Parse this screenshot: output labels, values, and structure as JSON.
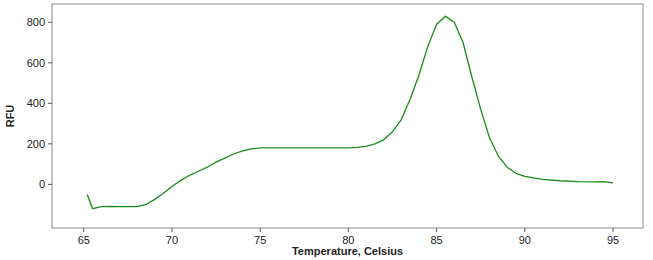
{
  "chart_data": {
    "type": "line",
    "x_label": "Temperature, Celsius",
    "y_label": "RFU",
    "x": [
      65.2,
      65.5,
      66,
      66.5,
      67,
      67.5,
      68,
      68.5,
      69,
      69.5,
      70,
      70.5,
      71,
      71.5,
      72,
      72.5,
      73,
      73.5,
      74,
      74.5,
      75,
      76,
      77,
      78,
      79,
      80,
      80.5,
      81,
      81.5,
      82,
      82.5,
      83,
      83.5,
      84,
      84.5,
      85,
      85.5,
      86,
      86.5,
      87,
      87.5,
      88,
      88.5,
      89,
      89.5,
      90,
      90.5,
      91,
      92,
      93,
      94,
      94.5,
      95
    ],
    "series": [
      {
        "name": "RFU",
        "color": "#1a8c1a",
        "values": [
          -50,
          -120,
          -110,
          -108,
          -110,
          -110,
          -110,
          -100,
          -75,
          -45,
          -10,
          20,
          45,
          65,
          85,
          110,
          130,
          150,
          165,
          175,
          180,
          180,
          180,
          180,
          180,
          180,
          183,
          188,
          200,
          220,
          260,
          320,
          420,
          540,
          680,
          790,
          830,
          800,
          700,
          530,
          370,
          230,
          140,
          85,
          55,
          40,
          32,
          25,
          18,
          14,
          13,
          14,
          8
        ]
      }
    ],
    "xlim": [
      63.2,
      96.7
    ],
    "ylim": [
      -215,
      890
    ],
    "xticks": [
      65,
      70,
      75,
      80,
      85,
      90,
      95
    ],
    "yticks": [
      0,
      200,
      400,
      600,
      800
    ],
    "grid": false
  }
}
